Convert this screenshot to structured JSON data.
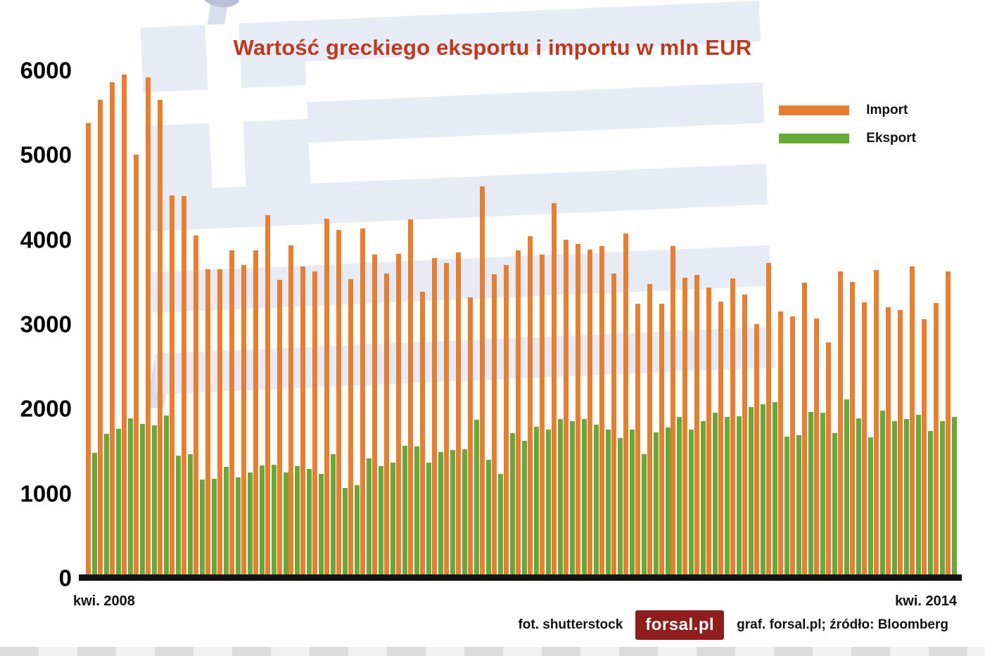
{
  "colors": {
    "title": "#c0391e",
    "import_bar": "#e87e2f",
    "export_bar": "#67a937",
    "logo_bg": "#8e1e1e",
    "axis": "#131313"
  },
  "footer": {
    "photo_credit": "fot. shutterstock",
    "logo_text": "forsal.pl",
    "credit": "graf. forsal.pl;  źródło: Bloomberg"
  },
  "chart_data": {
    "type": "bar",
    "title": "Wartość greckiego eksportu i importu w mln EUR",
    "xlabel": "",
    "ylabel": "",
    "ylim": [
      0,
      6000
    ],
    "yticks": [
      0,
      1000,
      2000,
      3000,
      4000,
      5000,
      6000
    ],
    "grid": false,
    "legend_position": "top-right",
    "xlabels_shown": [
      "kwi. 2008",
      "kwi. 2014"
    ],
    "categories": [
      "2008-04",
      "2008-05",
      "2008-06",
      "2008-07",
      "2008-08",
      "2008-09",
      "2008-10",
      "2008-11",
      "2008-12",
      "2009-01",
      "2009-02",
      "2009-03",
      "2009-04",
      "2009-05",
      "2009-06",
      "2009-07",
      "2009-08",
      "2009-09",
      "2009-10",
      "2009-11",
      "2009-12",
      "2010-01",
      "2010-02",
      "2010-03",
      "2010-04",
      "2010-05",
      "2010-06",
      "2010-07",
      "2010-08",
      "2010-09",
      "2010-10",
      "2010-11",
      "2010-12",
      "2011-01",
      "2011-02",
      "2011-03",
      "2011-04",
      "2011-05",
      "2011-06",
      "2011-07",
      "2011-08",
      "2011-09",
      "2011-10",
      "2011-11",
      "2011-12",
      "2012-01",
      "2012-02",
      "2012-03",
      "2012-04",
      "2012-05",
      "2012-06",
      "2012-07",
      "2012-08",
      "2012-09",
      "2012-10",
      "2012-11",
      "2012-12",
      "2013-01",
      "2013-02",
      "2013-03",
      "2013-04",
      "2013-05",
      "2013-06",
      "2013-07",
      "2013-08",
      "2013-09",
      "2013-10",
      "2013-11",
      "2013-12",
      "2014-01",
      "2014-02",
      "2014-03",
      "2014-04"
    ],
    "series": [
      {
        "name": "Import",
        "color": "#e87e2f",
        "values": [
          5380,
          5650,
          5860,
          5950,
          5000,
          5920,
          5650,
          4520,
          4510,
          4050,
          3650,
          3650,
          3870,
          3700,
          3870,
          4290,
          3520,
          3930,
          3680,
          3620,
          4250,
          4110,
          3530,
          4130,
          3820,
          3600,
          3830,
          4240,
          3380,
          3780,
          3720,
          3850,
          3320,
          4630,
          3590,
          3700,
          3870,
          4040,
          3820,
          4430,
          4000,
          3950,
          3880,
          3920,
          3600,
          4070,
          3240,
          3470,
          3240,
          3920,
          3550,
          3580,
          3430,
          3270,
          3540,
          3350,
          3000,
          3720,
          3150,
          3090,
          3490,
          3070,
          2780,
          3620,
          3500,
          3260,
          3640,
          3200,
          3170,
          3680,
          3060,
          3250,
          3620
        ]
      },
      {
        "name": "Eksport",
        "color": "#67a937",
        "values": [
          1480,
          1700,
          1760,
          1890,
          1820,
          1800,
          1920,
          1450,
          1460,
          1160,
          1170,
          1310,
          1190,
          1250,
          1330,
          1340,
          1250,
          1320,
          1290,
          1230,
          1460,
          1060,
          1100,
          1410,
          1320,
          1360,
          1560,
          1550,
          1360,
          1490,
          1510,
          1520,
          1870,
          1400,
          1230,
          1710,
          1620,
          1790,
          1750,
          1880,
          1850,
          1880,
          1810,
          1750,
          1650,
          1750,
          1460,
          1720,
          1780,
          1900,
          1750,
          1850,
          1950,
          1900,
          1910,
          2020,
          2050,
          2080,
          1670,
          1690,
          1960,
          1950,
          1710,
          2110,
          1890,
          1660,
          1980,
          1850,
          1880,
          1930,
          1740,
          1850,
          1900
        ]
      }
    ]
  }
}
